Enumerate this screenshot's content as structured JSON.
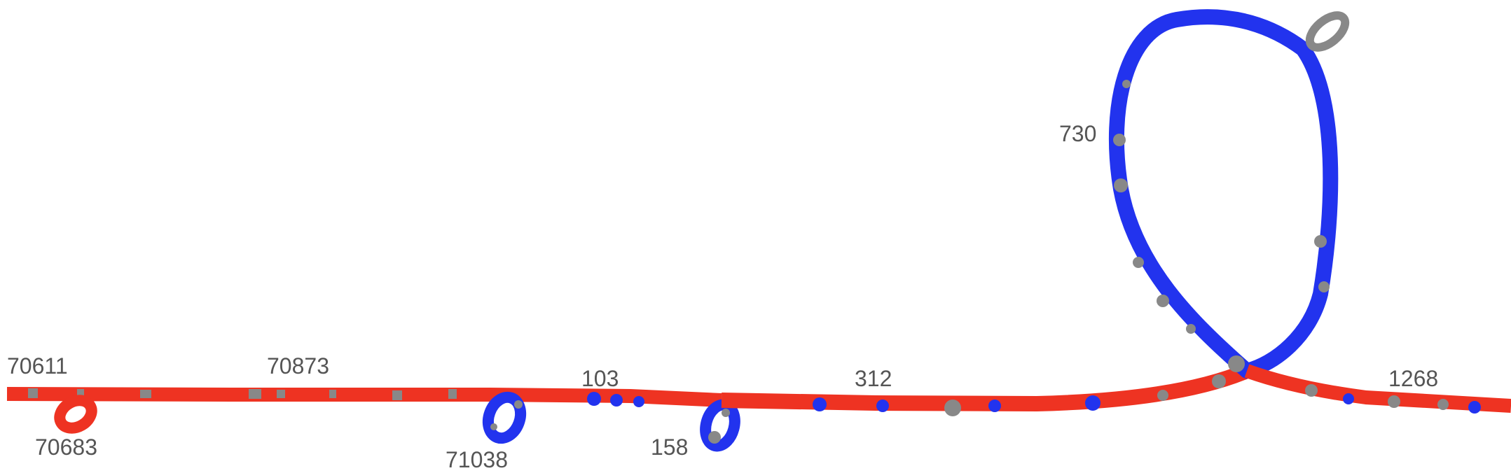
{
  "colors": {
    "background": "#ffffff",
    "red_strand": "#ee3322",
    "blue_strand": "#2233ee",
    "gray_strand": "#888888",
    "label_text": "#555555"
  },
  "labels": {
    "n70611": "70611",
    "n70683": "70683",
    "n70873": "70873",
    "n71038": "71038",
    "n103": "103",
    "n158": "158",
    "n312": "312",
    "n730": "730",
    "n1268": "1268"
  }
}
